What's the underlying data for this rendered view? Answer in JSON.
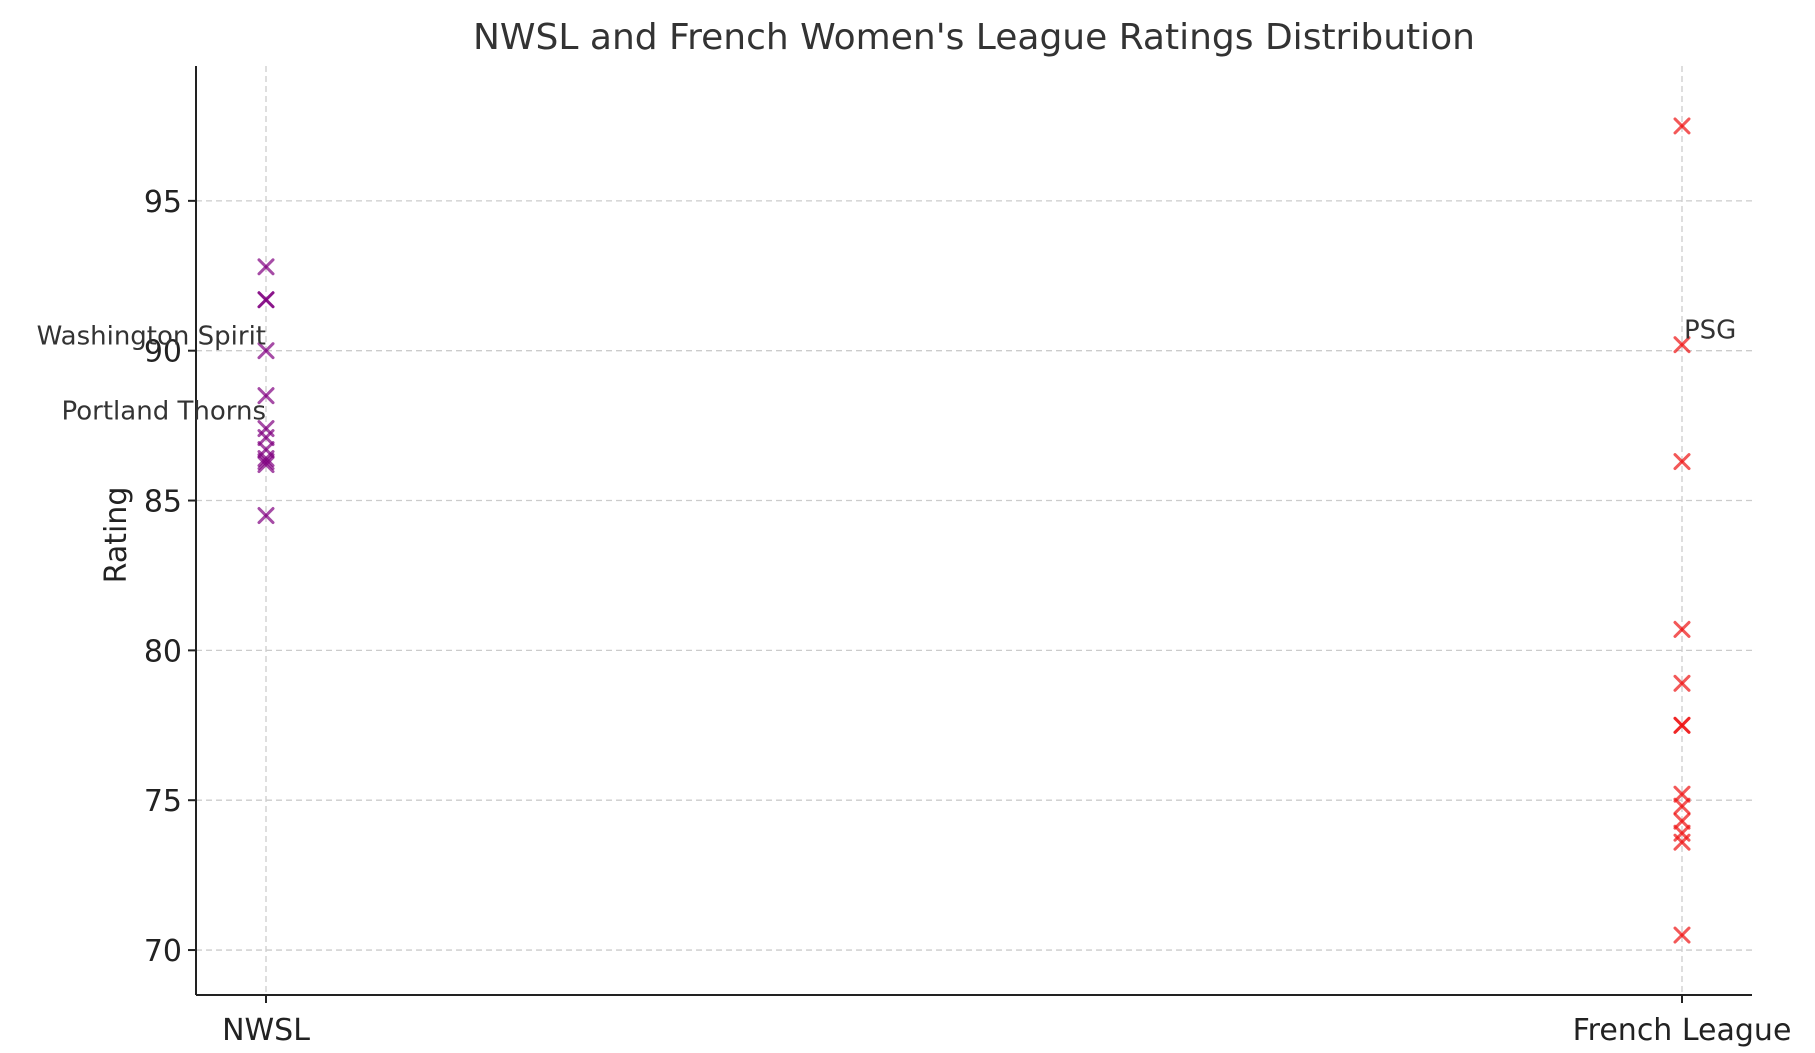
{
  "chart_data": {
    "type": "scatter",
    "title": "NWSL and French Women's League Ratings Distribution",
    "xlabel": "",
    "ylabel": "Rating",
    "categories": [
      "NWSL",
      "French League"
    ],
    "ylim": [
      68.5,
      99.5
    ],
    "yticks": [
      70,
      75,
      80,
      85,
      90,
      95
    ],
    "grid": true,
    "marker": "x",
    "series": [
      {
        "category": "NWSL",
        "color": "#800080",
        "values": [
          92.8,
          91.7,
          91.7,
          90.0,
          88.5,
          87.4,
          87.1,
          86.7,
          86.4,
          86.2,
          86.3,
          84.5
        ]
      },
      {
        "category": "French League",
        "color": "#ee1111",
        "values": [
          97.5,
          90.2,
          86.3,
          80.7,
          78.9,
          77.5,
          77.5,
          75.2,
          74.8,
          74.3,
          73.9,
          73.6,
          70.5
        ]
      }
    ],
    "annotations": [
      {
        "text": "Washington Spirit",
        "category": "NWSL",
        "value": 90.0,
        "align": "right"
      },
      {
        "text": "Portland Thorns",
        "category": "NWSL",
        "value": 87.5,
        "align": "right"
      },
      {
        "text": "PSG",
        "category": "French League",
        "value": 90.2,
        "align": "left"
      }
    ]
  }
}
